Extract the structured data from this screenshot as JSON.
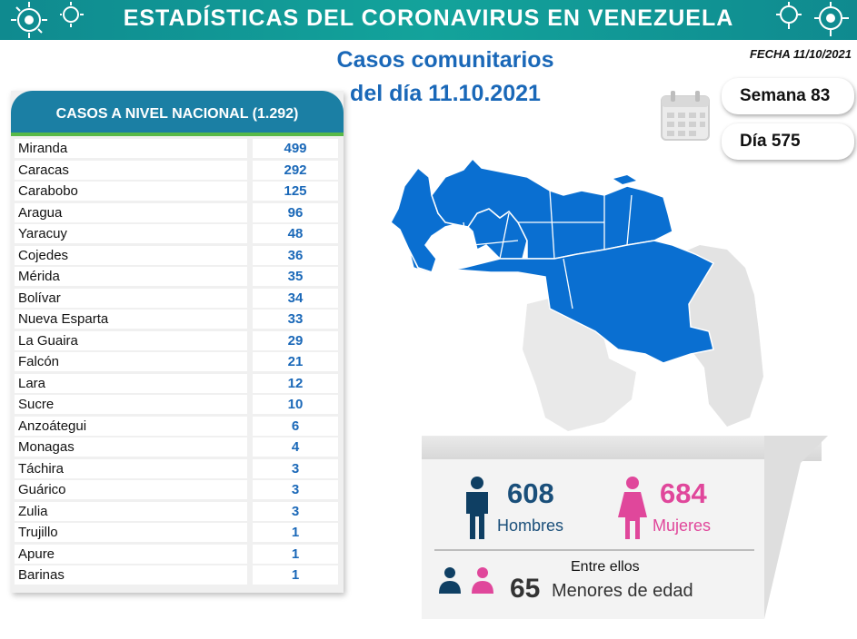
{
  "banner": {
    "title": "ESTADÍSTICAS DEL CORONAVIRUS EN VENEZUELA"
  },
  "fecha": "FECHA 11/10/2021",
  "subtitle": {
    "line1": "Casos comunitarios",
    "line2": "del día 11.10.2021"
  },
  "table": {
    "header": "CASOS A NIVEL NACIONAL (1.292)",
    "rows": [
      {
        "name": "Miranda",
        "value": "499"
      },
      {
        "name": "Caracas",
        "value": "292"
      },
      {
        "name": "Carabobo",
        "value": "125"
      },
      {
        "name": "Aragua",
        "value": "96"
      },
      {
        "name": "Yaracuy",
        "value": "48"
      },
      {
        "name": "Cojedes",
        "value": "36"
      },
      {
        "name": "Mérida",
        "value": "35"
      },
      {
        "name": "Bolívar",
        "value": "34"
      },
      {
        "name": "Nueva Esparta",
        "value": "33"
      },
      {
        "name": "La Guaira",
        "value": "29"
      },
      {
        "name": "Falcón",
        "value": "21"
      },
      {
        "name": "Lara",
        "value": "12"
      },
      {
        "name": "Sucre",
        "value": "10"
      },
      {
        "name": "Anzoátegui",
        "value": "6"
      },
      {
        "name": "Monagas",
        "value": "4"
      },
      {
        "name": "Táchira",
        "value": "3"
      },
      {
        "name": "Guárico",
        "value": "3"
      },
      {
        "name": "Zulia",
        "value": "3"
      },
      {
        "name": "Trujillo",
        "value": "1"
      },
      {
        "name": "Apure",
        "value": "1"
      },
      {
        "name": "Barinas",
        "value": "1"
      }
    ]
  },
  "semana": "Semana 83",
  "dia": "Día 575",
  "stats": {
    "hombres_num": "608",
    "hombres_label": "Hombres",
    "mujeres_num": "684",
    "mujeres_label": "Mujeres",
    "entre_ellos": "Entre ellos",
    "menores_num": "65",
    "menores_label": "Menores de edad"
  },
  "colors": {
    "banner": "#13a39b",
    "blue": "#1a68b8",
    "map": "#0a6fd1",
    "male": "#0f3f63",
    "female": "#e0479b",
    "header": "#1b7fa4"
  },
  "icons": [
    "virus-icon",
    "calendar-icon",
    "male-icon",
    "female-icon",
    "child-male-icon",
    "child-female-icon"
  ]
}
